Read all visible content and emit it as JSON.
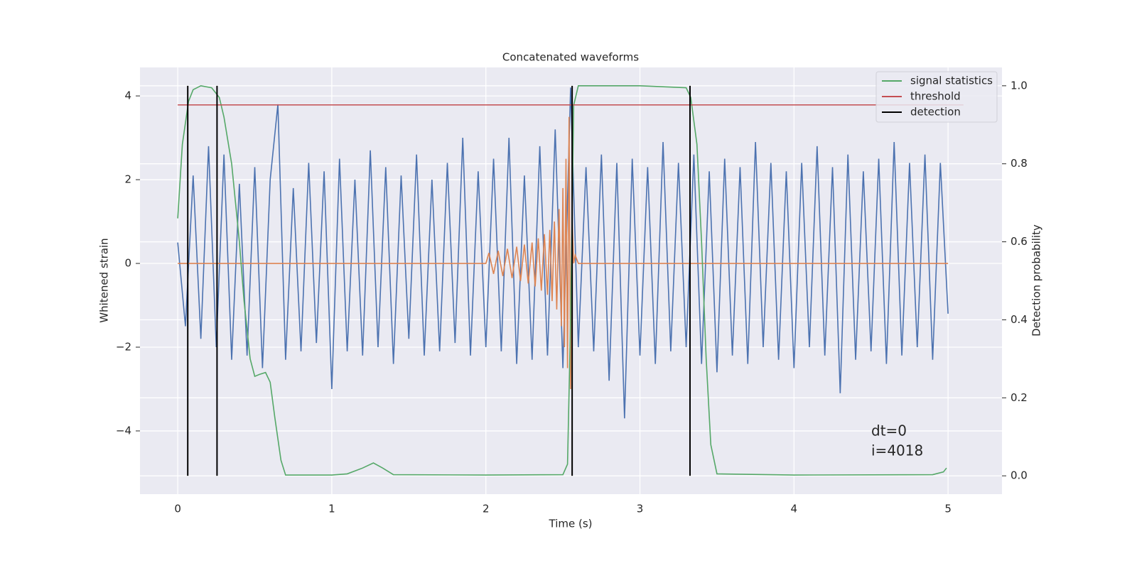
{
  "chart_data": {
    "type": "line",
    "title": "Concatenated waveforms",
    "xlabel": "Time (s)",
    "ylabel": "Whitened strain",
    "y2label": "Detection probability",
    "xlim": [
      -0.245,
      5.35
    ],
    "xticks": [
      0,
      1,
      2,
      3,
      4,
      5
    ],
    "ylim": [
      -5.51,
      4.68
    ],
    "yticks": [
      {
        "value": -4,
        "label": "−4"
      },
      {
        "value": -2,
        "label": "−2"
      },
      0,
      2,
      4
    ],
    "y2lim": [
      -0.047,
      1.047
    ],
    "y2ticks": [
      {
        "value": 0,
        "label": "0.0"
      },
      0.2,
      0.4,
      0.6,
      0.8,
      {
        "value": 1,
        "label": "1.0"
      }
    ],
    "grid": true,
    "legend": "upper right",
    "annotations": [
      "dt=0",
      "i=4018"
    ],
    "series": [
      {
        "color": "#4c72b0",
        "kind": "line",
        "x": [
          0,
          0.05,
          0.1,
          0.15,
          0.2,
          0.25,
          0.3,
          0.35,
          0.4,
          0.45,
          0.5,
          0.55,
          0.6,
          0.65,
          0.7,
          0.75,
          0.8,
          0.85,
          0.9,
          0.95,
          1.0,
          1.05,
          1.1,
          1.15,
          1.2,
          1.25,
          1.3,
          1.35,
          1.4,
          1.45,
          1.5,
          1.55,
          1.6,
          1.65,
          1.7,
          1.75,
          1.8,
          1.85,
          1.9,
          1.95,
          2.0,
          2.05,
          2.1,
          2.15,
          2.2,
          2.25,
          2.3,
          2.35,
          2.4,
          2.45,
          2.5,
          2.55,
          2.6,
          2.65,
          2.7,
          2.75,
          2.8,
          2.85,
          2.9,
          2.95,
          3.0,
          3.05,
          3.1,
          3.15,
          3.2,
          3.25,
          3.3,
          3.35,
          3.4,
          3.45,
          3.5,
          3.55,
          3.6,
          3.65,
          3.7,
          3.75,
          3.8,
          3.85,
          3.9,
          3.95,
          4.0,
          4.05,
          4.1,
          4.15,
          4.2,
          4.25,
          4.3,
          4.35,
          4.4,
          4.45,
          4.5,
          4.55,
          4.6,
          4.65,
          4.7,
          4.75,
          4.8,
          4.85,
          4.9,
          4.95,
          5.0
        ],
        "values": [
          0.5,
          -1.5,
          2.1,
          -1.8,
          2.8,
          -2.0,
          2.6,
          -2.3,
          1.9,
          -2.2,
          2.3,
          -2.5,
          2.0,
          3.8,
          -2.3,
          1.8,
          -2.1,
          2.4,
          -1.9,
          2.2,
          -3.0,
          2.5,
          -2.1,
          2.0,
          -2.2,
          2.7,
          -2.0,
          2.3,
          -2.4,
          2.1,
          -1.8,
          2.6,
          -2.2,
          2.0,
          -2.1,
          2.4,
          -1.9,
          3.0,
          -2.2,
          2.2,
          -2.0,
          2.5,
          -2.1,
          3.0,
          -2.4,
          2.1,
          -2.3,
          2.8,
          -2.2,
          3.2,
          -2.5,
          4.2,
          -2.0,
          2.3,
          -2.1,
          2.6,
          -2.8,
          2.4,
          -3.7,
          2.5,
          -2.2,
          2.3,
          -2.4,
          2.9,
          -2.1,
          2.4,
          -2.0,
          2.6,
          -2.4,
          2.2,
          -2.6,
          2.5,
          -2.2,
          2.3,
          -2.4,
          2.9,
          -2.0,
          2.4,
          -2.3,
          2.2,
          -2.5,
          2.4,
          -2.0,
          2.8,
          -2.2,
          2.3,
          -3.1,
          2.6,
          -2.3,
          2.2,
          -2.1,
          2.5,
          -2.4,
          2.9,
          -2.2,
          2.4,
          -2.0,
          2.6,
          -2.3,
          2.4,
          -1.2
        ]
      },
      {
        "color": "#dd8452",
        "kind": "line",
        "x": [
          0,
          2.0,
          2.02,
          2.05,
          2.08,
          2.11,
          2.14,
          2.17,
          2.2,
          2.225,
          2.25,
          2.275,
          2.3,
          2.32,
          2.34,
          2.36,
          2.38,
          2.4,
          2.415,
          2.43,
          2.445,
          2.46,
          2.475,
          2.49,
          2.5,
          2.51,
          2.52,
          2.53,
          2.54,
          2.55,
          2.56,
          2.57,
          2.58,
          2.6,
          5.0
        ],
        "values": [
          0,
          0,
          0.25,
          -0.25,
          0.3,
          -0.3,
          0.35,
          -0.35,
          0.4,
          -0.42,
          0.45,
          -0.48,
          0.5,
          -0.55,
          0.6,
          -0.65,
          0.7,
          -0.75,
          0.8,
          -0.9,
          1.0,
          -1.1,
          1.3,
          -1.5,
          1.8,
          -2.0,
          2.5,
          -2.5,
          3.5,
          -3.0,
          1.0,
          0,
          0.2,
          0,
          0
        ]
      },
      {
        "name": "signal statistics",
        "color": "#55a868",
        "kind": "line",
        "axis": "y2",
        "x": [
          0,
          0.03,
          0.07,
          0.1,
          0.15,
          0.22,
          0.27,
          0.3,
          0.35,
          0.4,
          0.43,
          0.47,
          0.5,
          0.53,
          0.57,
          0.6,
          0.63,
          0.67,
          0.7,
          1.0,
          1.1,
          1.2,
          1.27,
          1.33,
          1.4,
          2.0,
          2.5,
          2.53,
          2.55,
          2.57,
          2.6,
          3.0,
          3.3,
          3.33,
          3.37,
          3.4,
          3.43,
          3.46,
          3.5,
          4.0,
          4.9,
          4.97,
          4.99
        ],
        "values": [
          0.66,
          0.85,
          0.96,
          0.99,
          1.0,
          0.995,
          0.97,
          0.92,
          0.8,
          0.6,
          0.45,
          0.3,
          0.255,
          0.26,
          0.265,
          0.24,
          0.15,
          0.04,
          0.002,
          0.002,
          0.005,
          0.02,
          0.033,
          0.02,
          0.003,
          0.002,
          0.003,
          0.03,
          0.4,
          0.95,
          1.0,
          1.0,
          0.995,
          0.97,
          0.85,
          0.6,
          0.3,
          0.08,
          0.005,
          0.002,
          0.003,
          0.01,
          0.02
        ]
      },
      {
        "name": "threshold",
        "color": "#c44e52",
        "kind": "line",
        "axis": "y2",
        "x": [
          0,
          5.1
        ],
        "values": [
          0.951,
          0.951
        ]
      },
      {
        "name": "detection",
        "color": "#000000",
        "kind": "vline",
        "axis": "y2",
        "x": [
          0.065,
          0.255,
          2.56,
          3.325
        ],
        "span": [
          0,
          1
        ]
      }
    ]
  }
}
